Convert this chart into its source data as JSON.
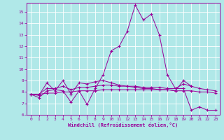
{
  "xlabel": "Windchill (Refroidissement éolien,°C)",
  "bg_color": "#b0e8e8",
  "grid_color": "#ffffff",
  "line_color": "#990099",
  "xlim": [
    -0.5,
    23.5
  ],
  "ylim": [
    6.0,
    15.8
  ],
  "xticks": [
    0,
    1,
    2,
    3,
    4,
    5,
    6,
    7,
    8,
    9,
    10,
    11,
    12,
    13,
    14,
    15,
    16,
    17,
    18,
    19,
    20,
    21,
    22,
    23
  ],
  "yticks": [
    6,
    7,
    8,
    9,
    10,
    11,
    12,
    13,
    14,
    15
  ],
  "line1": [
    7.8,
    7.5,
    8.1,
    8.2,
    8.1,
    7.1,
    8.1,
    6.9,
    8.3,
    9.5,
    11.6,
    12.0,
    13.3,
    15.6,
    14.3,
    14.8,
    13.0,
    9.5,
    8.3,
    8.3,
    6.4,
    6.7,
    6.4,
    6.4
  ],
  "line2": [
    7.8,
    7.7,
    8.8,
    8.1,
    9.0,
    7.8,
    8.8,
    8.7,
    8.9,
    9.0,
    8.8,
    8.6,
    8.5,
    8.4,
    8.3,
    8.3,
    8.2,
    8.2,
    8.1,
    9.0,
    8.5,
    null,
    null,
    null
  ],
  "line3": [
    7.8,
    7.8,
    8.3,
    8.3,
    8.5,
    8.2,
    8.4,
    8.4,
    8.5,
    8.6,
    8.6,
    8.5,
    8.5,
    8.5,
    8.4,
    8.4,
    8.4,
    8.3,
    8.3,
    8.7,
    8.5,
    8.3,
    8.2,
    8.1
  ],
  "line4": [
    7.8,
    7.8,
    7.9,
    7.9,
    8.0,
    8.0,
    8.1,
    8.1,
    8.1,
    8.2,
    8.2,
    8.2,
    8.2,
    8.2,
    8.2,
    8.2,
    8.2,
    8.2,
    8.1,
    8.1,
    8.1,
    8.0,
    8.0,
    7.9
  ]
}
